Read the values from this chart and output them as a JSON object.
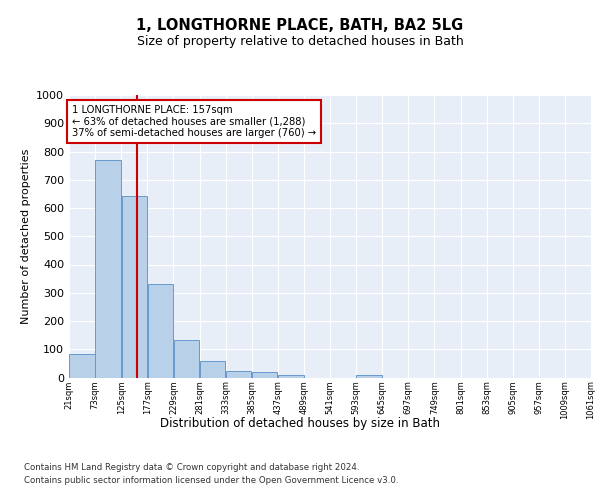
{
  "title": "1, LONGTHORNE PLACE, BATH, BA2 5LG",
  "subtitle": "Size of property relative to detached houses in Bath",
  "xlabel": "Distribution of detached houses by size in Bath",
  "ylabel": "Number of detached properties",
  "bar_color": "#b8d0e8",
  "bar_edge_color": "#6699cc",
  "property_line_color": "#cc0000",
  "property_sqm": 157,
  "annotation_line1": "1 LONGTHORNE PLACE: 157sqm",
  "annotation_line2": "← 63% of detached houses are smaller (1,288)",
  "annotation_line3": "37% of semi-detached houses are larger (760) →",
  "bins": [
    21,
    73,
    125,
    177,
    229,
    281,
    333,
    385,
    437,
    489,
    541,
    593,
    645,
    697,
    749,
    801,
    853,
    905,
    957,
    1009,
    1061
  ],
  "bin_labels": [
    "21sqm",
    "73sqm",
    "125sqm",
    "177sqm",
    "229sqm",
    "281sqm",
    "333sqm",
    "385sqm",
    "437sqm",
    "489sqm",
    "541sqm",
    "593sqm",
    "645sqm",
    "697sqm",
    "749sqm",
    "801sqm",
    "853sqm",
    "905sqm",
    "957sqm",
    "1009sqm",
    "1061sqm"
  ],
  "counts": [
    83,
    771,
    643,
    330,
    133,
    58,
    24,
    20,
    10,
    0,
    0,
    10,
    0,
    0,
    0,
    0,
    0,
    0,
    0,
    0
  ],
  "ylim": [
    0,
    1000
  ],
  "yticks": [
    0,
    100,
    200,
    300,
    400,
    500,
    600,
    700,
    800,
    900,
    1000
  ],
  "background_color": "#e8eef8",
  "footer_line1": "Contains HM Land Registry data © Crown copyright and database right 2024.",
  "footer_line2": "Contains public sector information licensed under the Open Government Licence v3.0."
}
